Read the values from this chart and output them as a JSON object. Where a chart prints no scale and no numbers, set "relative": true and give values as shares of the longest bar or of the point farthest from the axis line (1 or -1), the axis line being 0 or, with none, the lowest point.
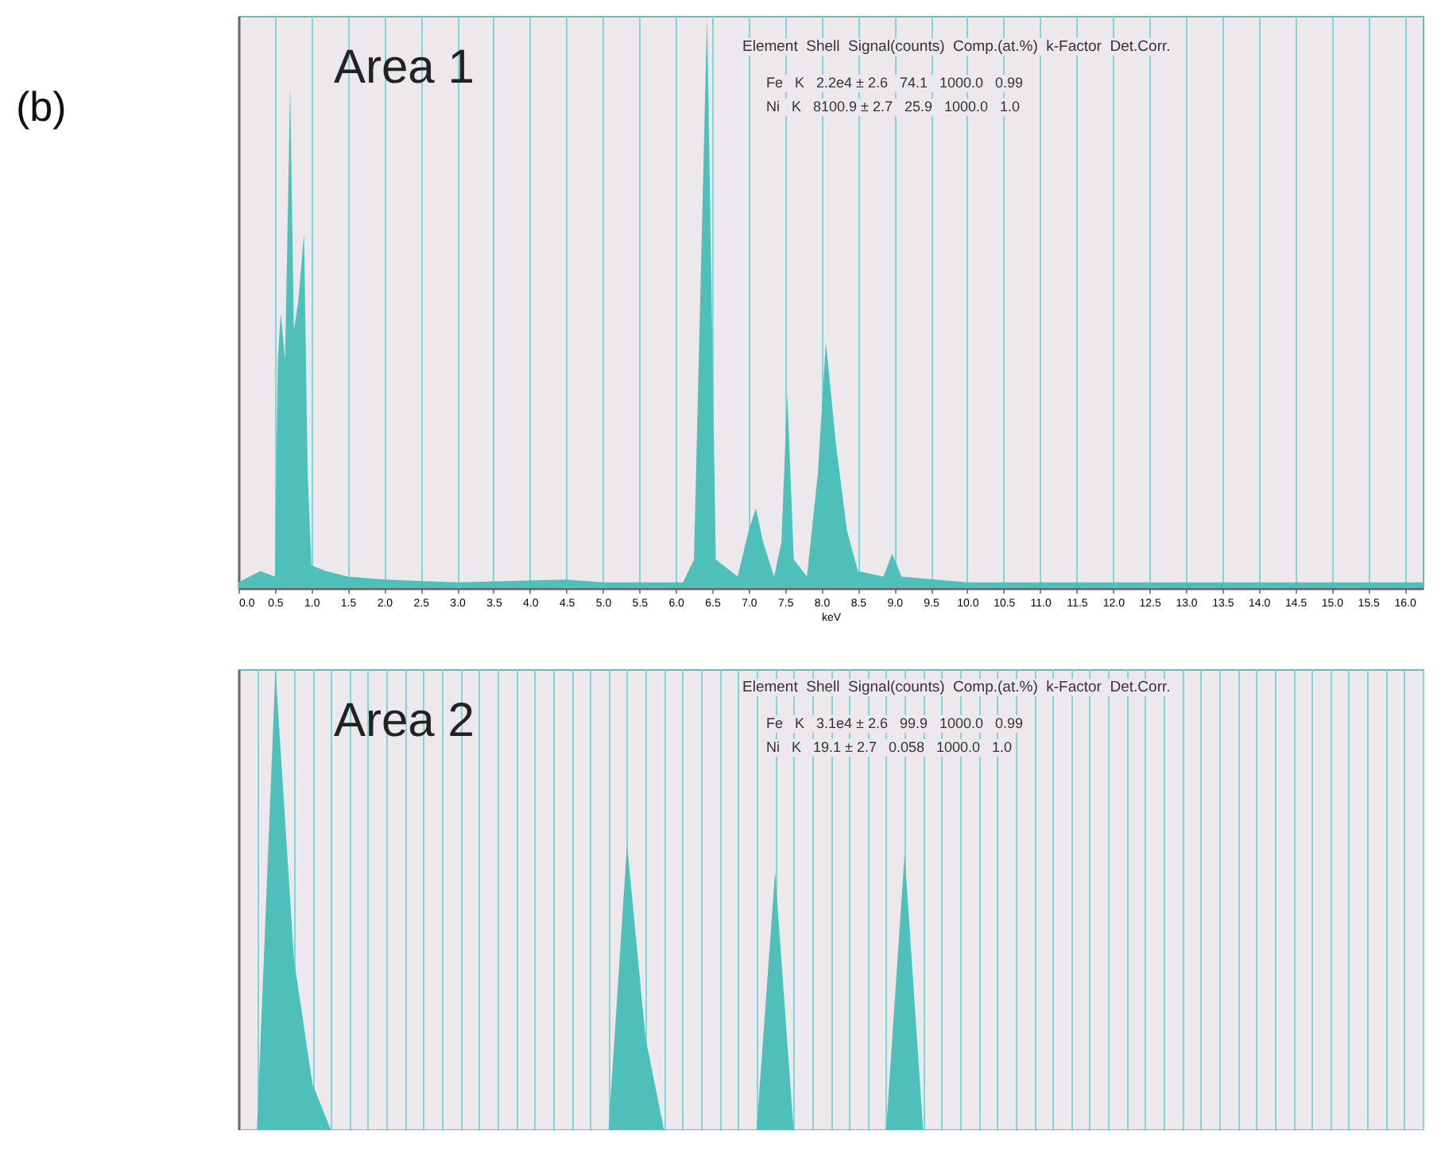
{
  "chart_data": [
    {
      "type": "area",
      "title": "Area 1",
      "subtitle": "(b)",
      "xlabel": "keV",
      "color": "#4fbfba",
      "relative": true,
      "grid": "x",
      "tick_labels": "x",
      "xlim": [
        0,
        16.25
      ],
      "xticks": [
        {
          "value": 0,
          "label": "0.0"
        },
        0.5,
        {
          "value": 1,
          "label": "1.0"
        },
        1.5,
        {
          "value": 2,
          "label": "2.0"
        },
        2.5,
        {
          "value": 3,
          "label": "3.0"
        },
        3.5,
        {
          "value": 4,
          "label": "4.0"
        },
        4.5,
        {
          "value": 5,
          "label": "5.0"
        },
        5.5,
        {
          "value": 6,
          "label": "6.0"
        },
        6.5,
        {
          "value": 7,
          "label": "7.0"
        },
        7.5,
        {
          "value": 8,
          "label": "8.0"
        },
        8.5,
        {
          "value": 9,
          "label": "9.0"
        },
        9.5,
        {
          "value": 10,
          "label": "10.0"
        },
        10.5,
        {
          "value": 11,
          "label": "11.0"
        },
        11.5,
        {
          "value": 12,
          "label": "12.0"
        },
        12.5,
        {
          "value": 13,
          "label": "13.0"
        },
        13.5,
        {
          "value": 14,
          "label": "14.0"
        },
        14.5,
        {
          "value": 15,
          "label": "15.0"
        },
        15.5,
        {
          "value": 16,
          "label": "16.0"
        }
      ],
      "x": [
        0,
        0.3,
        0.5,
        0.54,
        0.58,
        0.64,
        0.71,
        0.76,
        0.82,
        0.9,
        0.95,
        1.0,
        1.2,
        1.5,
        2.0,
        3.0,
        4.5,
        5.0,
        6.1,
        6.25,
        6.43,
        6.55,
        6.85,
        7.0,
        7.1,
        7.2,
        7.35,
        7.45,
        7.53,
        7.62,
        7.8,
        7.95,
        8.06,
        8.2,
        8.35,
        8.5,
        8.85,
        8.97,
        9.1,
        10.0,
        16.25
      ],
      "values": [
        0.01,
        0.03,
        0.02,
        0.4,
        0.48,
        0.4,
        0.88,
        0.45,
        0.5,
        0.62,
        0.2,
        0.04,
        0.03,
        0.02,
        0.015,
        0.01,
        0.015,
        0.01,
        0.01,
        0.05,
        1.0,
        0.05,
        0.02,
        0.1,
        0.14,
        0.08,
        0.02,
        0.08,
        0.34,
        0.05,
        0.02,
        0.2,
        0.43,
        0.25,
        0.1,
        0.03,
        0.02,
        0.06,
        0.02,
        0.01,
        0.01
      ],
      "annotations": [
        "Element  Shell  Signal(counts)  Comp.(at.%)  k-Factor  Det.Corr.",
        "Fe   K   2.2e4 ± 2.6   74.1   1000.0   0.99",
        "Ni   K   8100.9 ± 2.7   25.9   1000.0   1.0"
      ]
    },
    {
      "type": "area",
      "title": "Area 2",
      "color": "#4fbfba",
      "relative": true,
      "grid": "x",
      "tick_labels": false,
      "categories": [
        null,
        null,
        null,
        null,
        null,
        null,
        null,
        null,
        null,
        null,
        null,
        null,
        null,
        null,
        null,
        null,
        null,
        null,
        null,
        null,
        null,
        null,
        null,
        null,
        null,
        null,
        null,
        null,
        null,
        null,
        null,
        null,
        null,
        null,
        null,
        null,
        null,
        null,
        null,
        null,
        null,
        null,
        null,
        null,
        null,
        null,
        null,
        null,
        null,
        null,
        null,
        null,
        null,
        null,
        null,
        null,
        null,
        null,
        null,
        null,
        null,
        null,
        null,
        null,
        null
      ],
      "values": [
        0,
        0,
        1.0,
        0.37,
        0.1,
        0,
        0,
        0,
        0,
        0,
        0,
        0,
        0,
        0,
        0,
        0,
        0,
        0,
        0,
        0,
        0,
        0.62,
        0.2,
        0,
        0,
        0,
        0,
        0,
        0,
        0.56,
        0,
        0,
        0,
        0,
        0,
        0,
        0.6,
        0,
        0,
        0,
        0,
        0,
        0,
        0,
        0,
        0,
        0,
        0,
        0,
        0,
        0,
        0,
        0,
        0,
        0,
        0,
        0,
        0,
        0,
        0,
        0,
        0,
        0,
        0,
        0
      ],
      "annotations": [
        "Element  Shell  Signal(counts)  Comp.(at.%)  k-Factor  Det.Corr.",
        "Fe   K   3.1e4 ± 2.6   99.9   1000.0   0.99",
        "Ni   K   19.1 ± 2.7   0.058   1000.0   1.0"
      ]
    }
  ]
}
